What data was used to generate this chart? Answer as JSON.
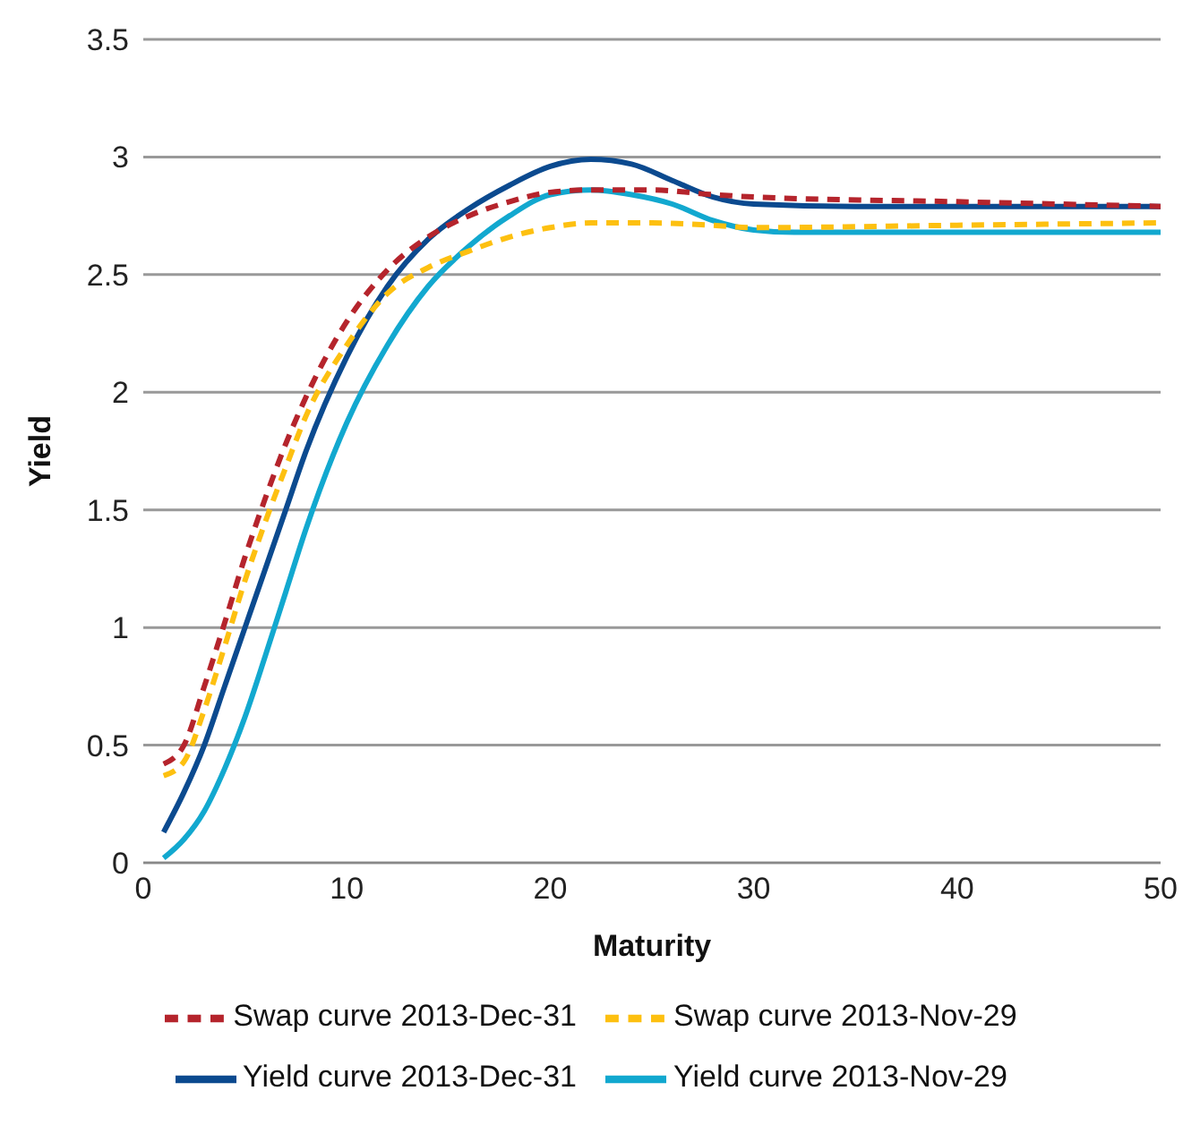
{
  "chart_data": {
    "type": "line",
    "xlabel": "Maturity",
    "ylabel": "Yield",
    "xlim": [
      0,
      50
    ],
    "xticks": [
      0,
      10,
      20,
      30,
      40,
      50
    ],
    "ylim": [
      0,
      3.5
    ],
    "yticks": [
      0,
      0.5,
      1,
      1.5,
      2,
      2.5,
      3,
      3.5
    ],
    "grid": "y",
    "legend": "bottom",
    "marker": "none",
    "series": [
      {
        "name": "Yield curve 2013-Dec-31",
        "color": "#0b4a8f",
        "line_style": "solid",
        "x": [
          1,
          2,
          3,
          4,
          5,
          6,
          7,
          8,
          10,
          12,
          14,
          16,
          18,
          20,
          22,
          24,
          26,
          28,
          30,
          35,
          40,
          50
        ],
        "values": [
          0.13,
          0.3,
          0.5,
          0.75,
          1.0,
          1.25,
          1.5,
          1.75,
          2.15,
          2.45,
          2.65,
          2.78,
          2.88,
          2.96,
          2.99,
          2.97,
          2.9,
          2.83,
          2.8,
          2.79,
          2.79,
          2.79
        ]
      },
      {
        "name": "Yield curve 2013-Nov-29",
        "color": "#12a8cf",
        "line_style": "solid",
        "x": [
          1,
          2,
          3,
          4,
          5,
          6,
          7,
          8,
          10,
          12,
          14,
          16,
          18,
          20,
          22,
          24,
          26,
          28,
          30,
          32,
          40,
          50
        ],
        "values": [
          0.02,
          0.1,
          0.22,
          0.4,
          0.62,
          0.88,
          1.15,
          1.42,
          1.87,
          2.2,
          2.45,
          2.62,
          2.75,
          2.84,
          2.86,
          2.84,
          2.8,
          2.73,
          2.69,
          2.68,
          2.68,
          2.68
        ]
      },
      {
        "name": "Swap curve 2013-Dec-31",
        "color": "#b5242c",
        "line_style": "dashed",
        "x": [
          1,
          2,
          3,
          4,
          5,
          6,
          7,
          8,
          10,
          12,
          14,
          16,
          18,
          20,
          22,
          25,
          28,
          30,
          40,
          50
        ],
        "values": [
          0.42,
          0.5,
          0.75,
          1.02,
          1.3,
          1.55,
          1.78,
          1.98,
          2.3,
          2.52,
          2.66,
          2.75,
          2.81,
          2.85,
          2.86,
          2.86,
          2.84,
          2.83,
          2.81,
          2.79
        ]
      },
      {
        "name": "Swap curve 2013-Nov-29",
        "color": "#fdc010",
        "line_style": "dashed",
        "x": [
          1,
          2,
          3,
          4,
          5,
          6,
          7,
          8,
          10,
          12,
          14,
          16,
          18,
          20,
          22,
          25,
          28,
          30,
          40,
          50
        ],
        "values": [
          0.37,
          0.43,
          0.65,
          0.92,
          1.2,
          1.45,
          1.68,
          1.9,
          2.2,
          2.42,
          2.53,
          2.6,
          2.66,
          2.7,
          2.72,
          2.72,
          2.71,
          2.7,
          2.71,
          2.72
        ]
      }
    ]
  }
}
